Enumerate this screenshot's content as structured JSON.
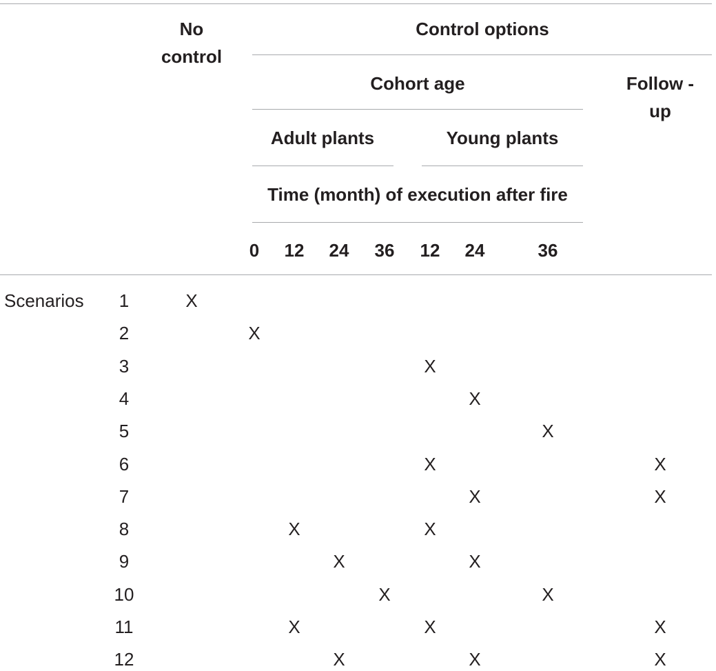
{
  "table": {
    "headers": {
      "no_control": "No control",
      "control_options": "Control options",
      "cohort_age": "Cohort age",
      "follow_up": "Follow -up",
      "adult_plants": "Adult plants",
      "young_plants": "Young plants",
      "time_label": "Time (month) of execution after fire",
      "time_columns": [
        "0",
        "12",
        "24",
        "36",
        "12",
        "24",
        "36"
      ]
    },
    "row_group_label": "Scenarios",
    "mark": "X",
    "rows": [
      {
        "id": "1",
        "marks": [
          0
        ]
      },
      {
        "id": "2",
        "marks": [
          1
        ]
      },
      {
        "id": "3",
        "marks": [
          5
        ]
      },
      {
        "id": "4",
        "marks": [
          6
        ]
      },
      {
        "id": "5",
        "marks": [
          7
        ]
      },
      {
        "id": "6",
        "marks": [
          5,
          8
        ]
      },
      {
        "id": "7",
        "marks": [
          6,
          8
        ]
      },
      {
        "id": "8",
        "marks": [
          2,
          5
        ]
      },
      {
        "id": "9",
        "marks": [
          3,
          6
        ]
      },
      {
        "id": "10",
        "marks": [
          4,
          7
        ]
      },
      {
        "id": "11",
        "marks": [
          2,
          5,
          8
        ]
      },
      {
        "id": "12",
        "marks": [
          3,
          6,
          8
        ]
      }
    ]
  }
}
